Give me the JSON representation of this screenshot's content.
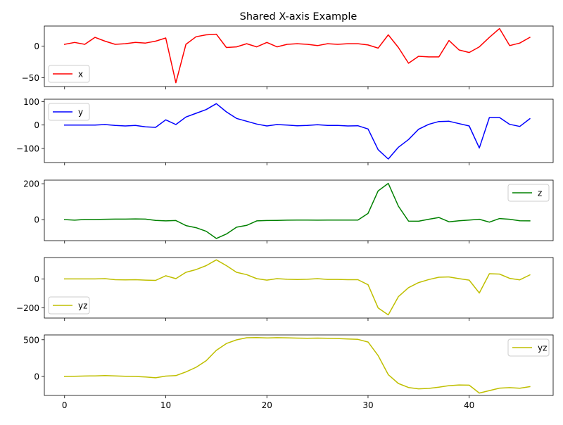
{
  "figure": {
    "title": "Shared X-axis Example"
  },
  "chart_data": [
    {
      "type": "line",
      "title": "Shared X-axis Example",
      "x": [
        0,
        1,
        2,
        3,
        4,
        5,
        6,
        7,
        8,
        9,
        10,
        11,
        12,
        13,
        14,
        15,
        16,
        17,
        18,
        19,
        20,
        21,
        22,
        23,
        24,
        25,
        26,
        27,
        28,
        29,
        30,
        31,
        32,
        33,
        34,
        35,
        36,
        37,
        38,
        39,
        40,
        41,
        42,
        43,
        44,
        45,
        46
      ],
      "series": [
        {
          "name": "x",
          "color": "#ff0000",
          "values": [
            3,
            6,
            3,
            14,
            8,
            3,
            4,
            6,
            5,
            8,
            13,
            -58,
            3,
            15,
            18,
            19,
            -2,
            -1,
            4,
            -1,
            6,
            -1,
            3,
            4,
            3,
            1,
            4,
            3,
            4,
            4,
            2,
            -3,
            18,
            -2,
            -27,
            -16,
            -17,
            -17,
            9,
            -6,
            -10,
            -1,
            14,
            28,
            1,
            5,
            14
          ]
        }
      ],
      "xlim": [
        -2,
        48.3
      ],
      "ylim": [
        -64,
        32
      ],
      "yticks": [
        -50,
        0
      ],
      "xticks": [
        0,
        10,
        20,
        30,
        40
      ],
      "show_xticklabels": false,
      "legend_position": "lower-left",
      "grid": false
    },
    {
      "type": "line",
      "x": [
        0,
        1,
        2,
        3,
        4,
        5,
        6,
        7,
        8,
        9,
        10,
        11,
        12,
        13,
        14,
        15,
        16,
        17,
        18,
        19,
        20,
        21,
        22,
        23,
        24,
        25,
        26,
        27,
        28,
        29,
        30,
        31,
        32,
        33,
        34,
        35,
        36,
        37,
        38,
        39,
        40,
        41,
        42,
        43,
        44,
        45,
        46
      ],
      "series": [
        {
          "name": "y",
          "color": "#0000ff",
          "values": [
            0,
            0,
            0,
            0,
            2,
            -2,
            -4,
            -2,
            -8,
            -10,
            22,
            2,
            34,
            50,
            66,
            91,
            56,
            28,
            16,
            4,
            -4,
            2,
            0,
            -3,
            -2,
            1,
            -2,
            -2,
            -4,
            -3,
            -17,
            -105,
            -145,
            -95,
            -62,
            -18,
            3,
            15,
            16,
            6,
            -4,
            -98,
            32,
            32,
            3,
            -6,
            27
          ]
        }
      ],
      "xlim": [
        -2,
        48.3
      ],
      "ylim": [
        -160,
        110
      ],
      "yticks": [
        -100,
        0,
        100
      ],
      "xticks": [
        0,
        10,
        20,
        30,
        40
      ],
      "show_xticklabels": false,
      "legend_position": "upper-left",
      "grid": false
    },
    {
      "type": "line",
      "x": [
        0,
        1,
        2,
        3,
        4,
        5,
        6,
        7,
        8,
        9,
        10,
        11,
        12,
        13,
        14,
        15,
        16,
        17,
        18,
        19,
        20,
        21,
        22,
        23,
        24,
        25,
        26,
        27,
        28,
        29,
        30,
        31,
        32,
        33,
        34,
        35,
        36,
        37,
        38,
        39,
        40,
        41,
        42,
        43,
        44,
        45,
        46
      ],
      "series": [
        {
          "name": "z",
          "color": "#008000",
          "values": [
            0,
            -3,
            1,
            1,
            2,
            3,
            3,
            4,
            3,
            -4,
            -7,
            -5,
            -33,
            -45,
            -65,
            -105,
            -80,
            -42,
            -32,
            -7,
            -5,
            -4,
            -3,
            -2,
            -2,
            -3,
            -2,
            -2,
            -2,
            -2,
            35,
            160,
            202,
            75,
            -8,
            -9,
            2,
            12,
            -12,
            -6,
            -2,
            2,
            -14,
            6,
            2,
            -6,
            -7
          ]
        }
      ],
      "xlim": [
        -2,
        48.3
      ],
      "ylim": [
        -117,
        220
      ],
      "yticks": [
        0,
        200
      ],
      "xticks": [
        0,
        10,
        20,
        30,
        40
      ],
      "show_xticklabels": false,
      "legend_position": "upper-right",
      "grid": false
    },
    {
      "type": "line",
      "x": [
        0,
        1,
        2,
        3,
        4,
        5,
        6,
        7,
        8,
        9,
        10,
        11,
        12,
        13,
        14,
        15,
        16,
        17,
        18,
        19,
        20,
        21,
        22,
        23,
        24,
        25,
        26,
        27,
        28,
        29,
        30,
        31,
        32,
        33,
        34,
        35,
        36,
        37,
        38,
        39,
        40,
        41,
        42,
        43,
        44,
        45,
        46
      ],
      "series": [
        {
          "name": "yz",
          "color": "#bfbf00",
          "values": [
            0,
            0,
            0,
            0,
            2,
            -5,
            -6,
            -5,
            -8,
            -10,
            22,
            2,
            46,
            65,
            92,
            132,
            92,
            46,
            30,
            2,
            -8,
            2,
            -2,
            -4,
            -2,
            2,
            -3,
            -3,
            -5,
            -5,
            -40,
            -200,
            -248,
            -122,
            -60,
            -25,
            -4,
            12,
            14,
            2,
            -8,
            -97,
            36,
            34,
            4,
            -6,
            28
          ]
        }
      ],
      "xlim": [
        -2,
        48.3
      ],
      "ylim": [
        -270,
        148
      ],
      "yticks": [
        -200,
        0
      ],
      "xticks": [
        0,
        10,
        20,
        30,
        40
      ],
      "show_xticklabels": false,
      "legend_position": "lower-left",
      "grid": false
    },
    {
      "type": "line",
      "x": [
        0,
        1,
        2,
        3,
        4,
        5,
        6,
        7,
        8,
        9,
        10,
        11,
        12,
        13,
        14,
        15,
        16,
        17,
        18,
        19,
        20,
        21,
        22,
        23,
        24,
        25,
        26,
        27,
        28,
        29,
        30,
        31,
        32,
        33,
        34,
        35,
        36,
        37,
        38,
        39,
        40,
        41,
        42,
        43,
        44,
        45,
        46
      ],
      "series": [
        {
          "name": "yz",
          "color": "#bfbf00",
          "values": [
            0,
            3,
            6,
            8,
            12,
            8,
            3,
            0,
            -7,
            -18,
            5,
            12,
            62,
            125,
            215,
            355,
            448,
            498,
            527,
            530,
            524,
            528,
            526,
            522,
            520,
            522,
            520,
            516,
            510,
            505,
            468,
            285,
            25,
            -95,
            -150,
            -168,
            -162,
            -145,
            -125,
            -115,
            -118,
            -225,
            -192,
            -158,
            -152,
            -160,
            -138
          ]
        }
      ],
      "xlim": [
        -2,
        48.3
      ],
      "ylim": [
        -258,
        565
      ],
      "yticks": [
        0,
        500
      ],
      "xticks": [
        0,
        10,
        20,
        30,
        40
      ],
      "show_xticklabels": true,
      "legend_position": "upper-right",
      "grid": false
    }
  ]
}
